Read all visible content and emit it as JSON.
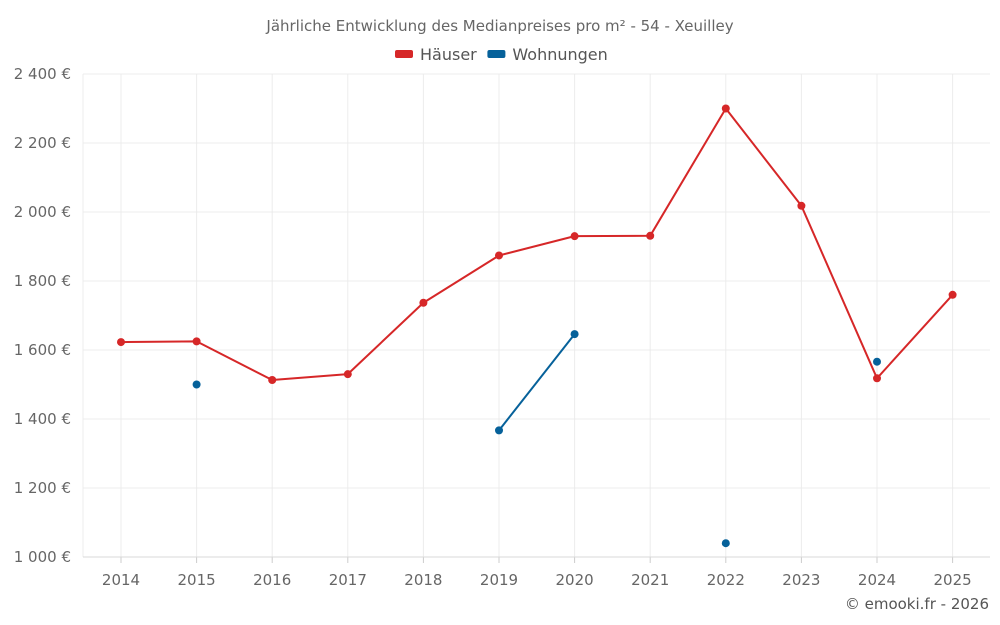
{
  "chart_data": {
    "type": "line",
    "title": "Jährliche Entwicklung des Medianpreises pro m² - 54 - Xeuilley",
    "categories": [
      "2014",
      "2015",
      "2016",
      "2017",
      "2018",
      "2019",
      "2020",
      "2021",
      "2022",
      "2023",
      "2024",
      "2025"
    ],
    "series": [
      {
        "name": "Häuser",
        "color": "#d62728",
        "values": [
          1623,
          1625,
          1513,
          1530,
          1737,
          1874,
          1930,
          1931,
          2300,
          2018,
          1518,
          1760
        ]
      },
      {
        "name": "Wohnungen",
        "color": "#06619a",
        "values": [
          null,
          1500,
          null,
          null,
          null,
          1367,
          1646,
          null,
          1040,
          null,
          1566,
          null
        ]
      }
    ],
    "ylim": [
      1000,
      2400
    ],
    "yticks": [
      1000,
      1200,
      1400,
      1600,
      1800,
      2000,
      2200,
      2400
    ],
    "ytick_labels": [
      "1 000 €",
      "1 200 €",
      "1 400 €",
      "1 600 €",
      "1 800 €",
      "2 000 €",
      "2 200 €",
      "2 400 €"
    ],
    "xlabel": "",
    "ylabel": "",
    "grid": true,
    "legend_position": "top-center"
  },
  "footer": {
    "credit": "© emooki.fr - 2026"
  }
}
